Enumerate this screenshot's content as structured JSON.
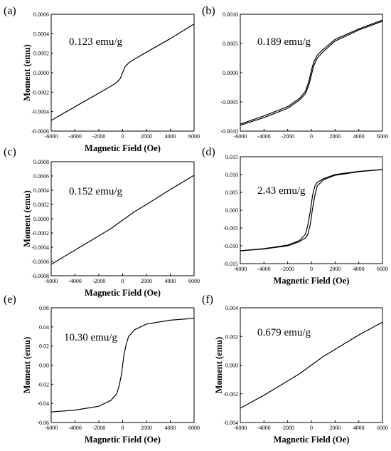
{
  "chart_data": [
    {
      "panel": "(a)",
      "type": "line",
      "annotation": "0.123 emu/g",
      "xlabel": "Magnetic Field (Oe)",
      "ylabel": "Moment (emu)",
      "xlim": [
        -6000,
        6000
      ],
      "ylim": [
        -0.0006,
        0.0006
      ],
      "xticks": [
        -6000,
        -4000,
        -2000,
        0,
        2000,
        4000,
        6000
      ],
      "yticks": [
        -0.0006,
        -0.0004,
        -0.0002,
        0.0,
        0.0002,
        0.0004,
        0.0006
      ],
      "xtick_labels": [
        "-6000",
        "-4000",
        "-2000",
        "0",
        "2000",
        "4000",
        "6000"
      ],
      "ytick_labels": [
        "-0.0006",
        "-0.0004",
        "-0.0002",
        "0.0000",
        "0.0002",
        "0.0004",
        "0.0006"
      ],
      "series": [
        {
          "x": [
            -6000,
            -4000,
            -2000,
            -1000,
            -500,
            -200,
            0,
            200,
            500,
            1000,
            2000,
            4000,
            6000
          ],
          "values": [
            -0.00049,
            -0.00035,
            -0.00021,
            -0.00014,
            -0.0001,
            -6e-05,
            0.0,
            6e-05,
            0.0001,
            0.00014,
            0.00021,
            0.00035,
            0.0005
          ]
        }
      ]
    },
    {
      "panel": "(b)",
      "type": "line",
      "annotation": "0.189 emu/g",
      "xlabel": "",
      "ylabel": "",
      "xlim": [
        -6000,
        6000
      ],
      "ylim": [
        -0.001,
        0.001
      ],
      "xticks": [
        -6000,
        -4000,
        -2000,
        0,
        2000,
        4000,
        6000
      ],
      "yticks": [
        -0.001,
        -0.0005,
        0.0,
        0.0005,
        0.001
      ],
      "xtick_labels": [
        "-6000",
        "-4000",
        "-2000",
        "0",
        "2000",
        "4000",
        "6000"
      ],
      "ytick_labels": [
        "-0.0010",
        "-0.0005",
        "0.0000",
        "0.0005",
        "0.0010"
      ],
      "series": [
        {
          "x": [
            -6000,
            -4000,
            -2000,
            -1000,
            -500,
            -200,
            0,
            200,
            500,
            1000,
            2000,
            4000,
            6000
          ],
          "values": [
            -0.00088,
            -0.00074,
            -0.00058,
            -0.00044,
            -0.00032,
            -0.00014,
            4e-05,
            0.00018,
            0.0003,
            0.0004,
            0.00057,
            0.00075,
            0.0009
          ]
        },
        {
          "x": [
            -6000,
            -4000,
            -2000,
            -1000,
            -500,
            -200,
            0,
            200,
            500,
            1000,
            2000,
            4000,
            6000
          ],
          "values": [
            -0.0009,
            -0.00077,
            -0.00061,
            -0.00047,
            -0.00036,
            -0.0002,
            -4e-05,
            0.00012,
            0.00025,
            0.00036,
            0.00054,
            0.00073,
            0.00088
          ]
        }
      ]
    },
    {
      "panel": "(c)",
      "type": "line",
      "annotation": "0.152 emu/g",
      "xlabel": "Magnetic Field (Oe)",
      "ylabel": "Moment (emu)",
      "xlim": [
        -6000,
        6000
      ],
      "ylim": [
        -0.0008,
        0.0008
      ],
      "xticks": [
        -6000,
        -4000,
        -2000,
        0,
        2000,
        4000,
        6000
      ],
      "yticks": [
        -0.0008,
        -0.0006,
        -0.0004,
        -0.0002,
        0.0,
        0.0002,
        0.0004,
        0.0006,
        0.0008
      ],
      "xtick_labels": [
        "-6000",
        "-4000",
        "-2000",
        "0",
        "2000",
        "4000",
        "6000"
      ],
      "ytick_labels": [
        "-0.0008",
        "-0.0006",
        "-0.0004",
        "-0.0002",
        "0.0000",
        "0.0002",
        "0.0004",
        "0.0006",
        "0.0008"
      ],
      "series": [
        {
          "x": [
            -6000,
            -4000,
            -2000,
            -1000,
            0,
            1000,
            2000,
            4000,
            6000
          ],
          "values": [
            -0.00064,
            -0.00044,
            -0.00024,
            -0.00014,
            -2e-05,
            0.0001,
            0.0002,
            0.00041,
            0.00061
          ]
        }
      ]
    },
    {
      "panel": "(d)",
      "type": "line",
      "annotation": "2.43 emu/g",
      "xlabel": "Magnetic Field (Oe)",
      "ylabel": "",
      "xlim": [
        -6000,
        6000
      ],
      "ylim": [
        -0.015,
        0.015
      ],
      "xticks": [
        -6000,
        -4000,
        -2000,
        0,
        2000,
        4000,
        6000
      ],
      "yticks": [
        -0.015,
        -0.01,
        -0.005,
        0.0,
        0.005,
        0.01,
        0.015
      ],
      "xtick_labels": [
        "-6000",
        "-4000",
        "-2000",
        "0",
        "2000",
        "4000",
        "6000"
      ],
      "ytick_labels": [
        "-0.015",
        "-0.010",
        "-0.005",
        "0.000",
        "0.005",
        "0.010",
        "0.015"
      ],
      "series": [
        {
          "x": [
            -6000,
            -4000,
            -2000,
            -1000,
            -500,
            -300,
            -100,
            100,
            300,
            500,
            1000,
            2000,
            4000,
            6000
          ],
          "values": [
            -0.0114,
            -0.0108,
            -0.0098,
            -0.0085,
            -0.0068,
            -0.0042,
            -0.0005,
            0.0042,
            0.0068,
            0.0078,
            0.0088,
            0.01,
            0.0109,
            0.0114
          ]
        },
        {
          "x": [
            -6000,
            -4000,
            -2000,
            -1000,
            -500,
            -300,
            -100,
            100,
            300,
            500,
            1000,
            2000,
            4000,
            6000
          ],
          "values": [
            -0.0114,
            -0.0109,
            -0.01,
            -0.0088,
            -0.0078,
            -0.0068,
            -0.0042,
            0.0005,
            0.0042,
            0.0068,
            0.0085,
            0.0098,
            0.0108,
            0.0114
          ]
        }
      ]
    },
    {
      "panel": "(e)",
      "type": "line",
      "annotation": "10.30 emu/g",
      "xlabel": "Magnetic Field (Oe)",
      "ylabel": "Moment (emu)",
      "xlim": [
        -6000,
        6000
      ],
      "ylim": [
        -0.06,
        0.06
      ],
      "xticks": [
        -6000,
        -4000,
        -2000,
        0,
        2000,
        4000,
        6000
      ],
      "yticks": [
        -0.06,
        -0.04,
        -0.02,
        0.0,
        0.02,
        0.04,
        0.06
      ],
      "xtick_labels": [
        "-6000",
        "-4000",
        "-2000",
        "0",
        "2000",
        "4000",
        "6000"
      ],
      "ytick_labels": [
        "-0.06",
        "-0.04",
        "-0.02",
        "0.00",
        "0.02",
        "0.04",
        "0.06"
      ],
      "series": [
        {
          "x": [
            -6000,
            -4000,
            -2000,
            -1000,
            -500,
            -300,
            -100,
            0,
            100,
            300,
            500,
            1000,
            2000,
            4000,
            6000
          ],
          "values": [
            -0.049,
            -0.047,
            -0.043,
            -0.037,
            -0.03,
            -0.022,
            -0.01,
            0.0,
            0.01,
            0.022,
            0.03,
            0.037,
            0.043,
            0.047,
            0.049
          ]
        }
      ]
    },
    {
      "panel": "(f)",
      "type": "line",
      "annotation": "0.679 emu/g",
      "xlabel": "Magnetic Field (Oe)",
      "ylabel": "Moment (emu)",
      "xlim": [
        -6000,
        6000
      ],
      "ylim": [
        -0.004,
        0.004
      ],
      "xticks": [
        -6000,
        -4000,
        -2000,
        0,
        2000,
        4000,
        6000
      ],
      "yticks": [
        -0.004,
        -0.002,
        0.0,
        0.002,
        0.004
      ],
      "xtick_labels": [
        "-6000",
        "-4000",
        "-2000",
        "0",
        "2000",
        "4000",
        "6000"
      ],
      "ytick_labels": [
        "-0.004",
        "-0.002",
        "0.000",
        "0.002",
        "0.004"
      ],
      "series": [
        {
          "x": [
            -6000,
            -4000,
            -2000,
            -1000,
            0,
            1000,
            2000,
            4000,
            6000
          ],
          "values": [
            -0.003,
            -0.0021,
            -0.0011,
            -0.0006,
            0.0,
            0.0006,
            0.0011,
            0.0021,
            0.003
          ]
        }
      ]
    }
  ]
}
